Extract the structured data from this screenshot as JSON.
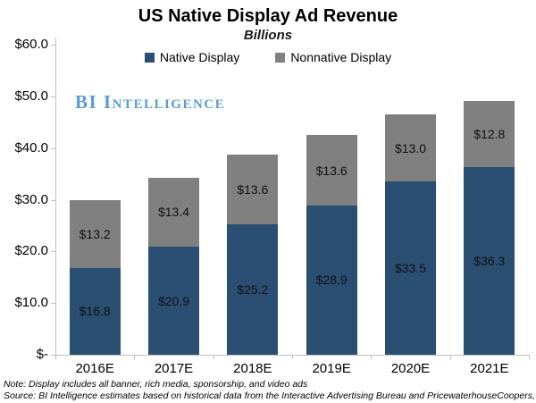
{
  "chart_data": {
    "type": "bar",
    "stacked": true,
    "title": "US Native Display Ad Revenue",
    "subtitle": "Billions",
    "categories": [
      "2016E",
      "2017E",
      "2018E",
      "2019E",
      "2020E",
      "2021E"
    ],
    "series": [
      {
        "name": "Native Display",
        "color": "#2A4F72",
        "values": [
          16.8,
          20.9,
          25.2,
          28.9,
          33.5,
          36.3
        ]
      },
      {
        "name": "Nonnative Display",
        "color": "#808080",
        "values": [
          13.2,
          13.4,
          13.6,
          13.6,
          13.0,
          12.8
        ]
      }
    ],
    "value_label_format": "$#.#",
    "y_axis": {
      "min": 0,
      "max": 60,
      "tick_values": [
        60,
        50,
        40,
        30,
        20,
        10,
        0
      ],
      "tick_labels": [
        "$60.0",
        "$50.0",
        "$40.0",
        "$30.0",
        "$20.0",
        "$10.0",
        "$-"
      ]
    },
    "legend_position": "top",
    "grid": false
  },
  "watermark": {
    "text": "BI Intelligence",
    "color": "#5B9BD5"
  },
  "notes": {
    "note": "Note: Display includes all banner, rich media, sponsorship, and video ads",
    "source": "Source: BI Intelligence estimates based on historical data from the Interactive Advertising Bureau and PricewaterhouseCoopers, and IHS"
  },
  "colors": {
    "axis": "#BFBFBF",
    "text": "#000000"
  }
}
